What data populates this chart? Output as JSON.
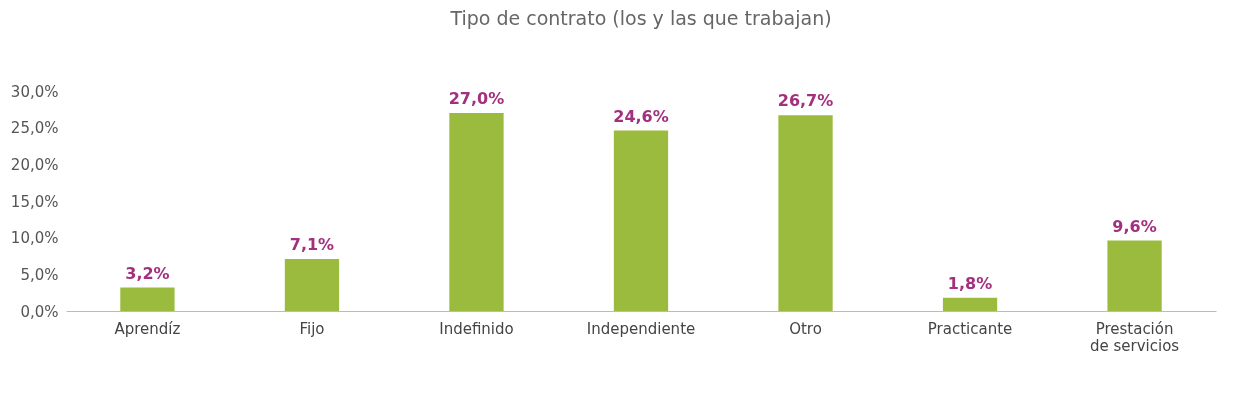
{
  "chart_data": {
    "type": "bar",
    "title": "Tipo de contrato (los y las que trabajan)",
    "categories": [
      "Aprendíz",
      "Fijo",
      "Indefinido",
      "Independiente",
      "Otro",
      "Practicante",
      "Prestación de servicios"
    ],
    "values": [
      3.2,
      7.1,
      27.0,
      24.6,
      26.7,
      1.8,
      9.6
    ],
    "value_labels": [
      "3,2%",
      "7,1%",
      "27,0%",
      "24,6%",
      "26,7%",
      "1,8%",
      "9,6%"
    ],
    "color": "#9bbb3f",
    "ylim": [
      0,
      30
    ],
    "yticks": [
      {
        "value": 0,
        "label": "0,0%"
      },
      {
        "value": 5,
        "label": "5,0%"
      },
      {
        "value": 10,
        "label": "10,0%"
      },
      {
        "value": 15,
        "label": "15,0%"
      },
      {
        "value": 20,
        "label": "20,0%"
      },
      {
        "value": 25,
        "label": "25,0%"
      },
      {
        "value": 30,
        "label": "30,0%"
      }
    ],
    "grid": false
  }
}
